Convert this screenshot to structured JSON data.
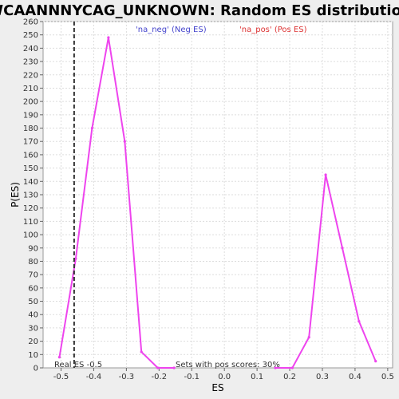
{
  "chart_data": {
    "type": "line",
    "title": "WCAANNNYCAG_UNKNOWN: Random ES distribution",
    "xlabel": "ES",
    "ylabel": "P(ES)",
    "xlim": [
      -0.555,
      0.515
    ],
    "ylim": [
      0,
      260
    ],
    "xticks": [
      "-0.5",
      "-0.4",
      "-0.3",
      "-0.2",
      "-0.1",
      "0.0",
      "0.1",
      "0.2",
      "0.3",
      "0.4",
      "0.5"
    ],
    "xtick_values": [
      -0.5,
      -0.4,
      -0.3,
      -0.2,
      -0.1,
      0.0,
      0.1,
      0.2,
      0.3,
      0.4,
      0.5
    ],
    "yticks": [
      "0",
      "10",
      "20",
      "30",
      "40",
      "50",
      "60",
      "70",
      "80",
      "90",
      "100",
      "110",
      "120",
      "130",
      "140",
      "150",
      "160",
      "170",
      "180",
      "190",
      "200",
      "210",
      "220",
      "230",
      "240",
      "250",
      "260"
    ],
    "ytick_values": [
      0,
      10,
      20,
      30,
      40,
      50,
      60,
      70,
      80,
      90,
      100,
      110,
      120,
      130,
      140,
      150,
      160,
      170,
      180,
      190,
      200,
      210,
      220,
      230,
      240,
      250,
      260
    ],
    "grid": true,
    "series": [
      {
        "name": "'na_neg' (Neg ES)",
        "color": "#4444cc",
        "line_color": "#ee44ee",
        "x": [
          -0.505,
          -0.455,
          -0.405,
          -0.355,
          -0.305,
          -0.254,
          -0.204,
          -0.154
        ],
        "y": [
          8,
          82,
          180,
          248,
          170,
          12,
          0,
          0
        ]
      },
      {
        "name": "'na_pos' (Pos ES)",
        "color": "#dd3333",
        "line_color": "#ee44ee",
        "x": [
          0.156,
          0.208,
          0.259,
          0.31,
          0.361,
          0.412,
          0.463
        ],
        "y": [
          0,
          0,
          23,
          145,
          90,
          35,
          5
        ]
      }
    ],
    "real_es": {
      "value": -0.46,
      "label": "Real ES -0.5",
      "color": "#333333"
    },
    "annotation": "Sets with pos scores: 30%",
    "legend_placement": "top"
  }
}
